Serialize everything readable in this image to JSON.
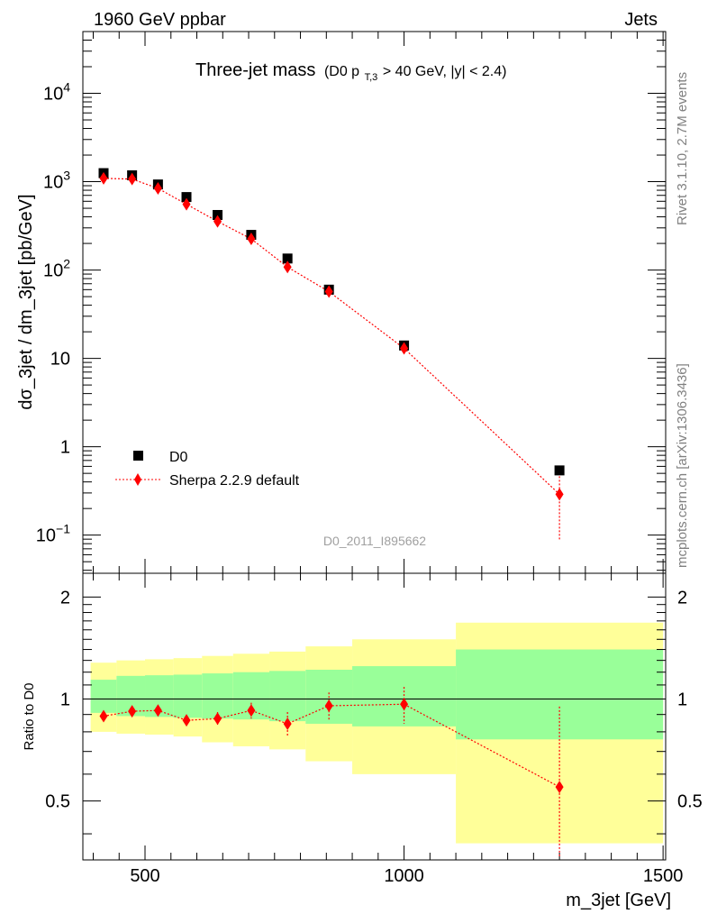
{
  "header": {
    "energy_label": "1960 GeV ppbar",
    "category_label": "Jets"
  },
  "side_labels": {
    "rivet": "Rivet 3.1.10,  2.7M events",
    "source": "mcplots.cern.ch [arXiv:1306.3436]"
  },
  "chart_data": [
    {
      "type": "scatter",
      "title": "Three-jet mass",
      "subtitle_prefix": "(D0 p",
      "subtitle_sub": "T,3",
      "subtitle_suffix": " > 40 GeV, |y| < 2.4)",
      "watermark": "D0_2011_I895662",
      "xlabel": "m_3jet [GeV]",
      "ylabel": "dσ_3jet / dm_3jet [pb/GeV]",
      "xlim": [
        380,
        1505
      ],
      "ylim": [
        0.037,
        50000
      ],
      "yscale": "log",
      "legend_position": "bottom-left",
      "y_ticks": [
        {
          "value": 0.1,
          "base": "10",
          "exp": "−1"
        },
        {
          "value": 1,
          "base": "1",
          "exp": ""
        },
        {
          "value": 10,
          "base": "10",
          "exp": ""
        },
        {
          "value": 100,
          "base": "10",
          "exp": "2"
        },
        {
          "value": 1000,
          "base": "10",
          "exp": "3"
        },
        {
          "value": 10000,
          "base": "10",
          "exp": "4"
        }
      ],
      "series": [
        {
          "name": "D0",
          "color": "#000000",
          "marker": "square",
          "x": [
            420,
            475,
            525,
            580,
            640,
            705,
            775,
            855,
            1000,
            1300
          ],
          "y": [
            1250,
            1180,
            930,
            670,
            420,
            250,
            135,
            60,
            14,
            0.54
          ]
        },
        {
          "name": "Sherpa 2.2.9 default",
          "color": "#ff0000",
          "marker": "diamond",
          "line": "dotted",
          "x": [
            420,
            475,
            525,
            580,
            640,
            705,
            775,
            855,
            1000,
            1300
          ],
          "y": [
            1090,
            1070,
            840,
            555,
            355,
            225,
            108,
            57,
            13,
            0.29
          ],
          "y_err_low": [
            0,
            0,
            0,
            0,
            0,
            0,
            0,
            0,
            0,
            0.086
          ],
          "y_err_high": [
            0,
            0,
            0,
            0,
            0,
            0,
            0,
            0,
            0,
            0.56
          ]
        }
      ]
    },
    {
      "type": "scatter",
      "ylabel": "Ratio to D0",
      "xlim": [
        380,
        1505
      ],
      "ylim": [
        0.335,
        2.35
      ],
      "yscale": "log",
      "x_ticks": [
        500,
        1000,
        1500
      ],
      "y_ticks": [
        0.5,
        1,
        2
      ],
      "reference_line": 1,
      "bands": {
        "bin_edges": [
          395,
          445,
          500,
          555,
          610,
          670,
          740,
          810,
          900,
          1100,
          1500
        ],
        "inner": {
          "color": "#99ff99",
          "low": [
            0.91,
            0.89,
            0.885,
            0.88,
            0.875,
            0.87,
            0.86,
            0.845,
            0.83,
            0.76
          ],
          "high": [
            1.14,
            1.17,
            1.175,
            1.18,
            1.19,
            1.2,
            1.21,
            1.22,
            1.25,
            1.4
          ]
        },
        "outer": {
          "color": "#ffff99",
          "low": [
            0.8,
            0.79,
            0.785,
            0.775,
            0.745,
            0.725,
            0.71,
            0.655,
            0.6,
            0.375
          ],
          "high": [
            1.28,
            1.3,
            1.31,
            1.32,
            1.34,
            1.36,
            1.38,
            1.43,
            1.5,
            1.68
          ]
        }
      },
      "series": [
        {
          "name": "Sherpa 2.2.9 default",
          "color": "#ff0000",
          "marker": "diamond",
          "line": "dotted",
          "x": [
            420,
            475,
            525,
            580,
            640,
            705,
            775,
            855,
            1000,
            1300
          ],
          "y": [
            0.89,
            0.92,
            0.925,
            0.865,
            0.875,
            0.925,
            0.845,
            0.955,
            0.965,
            0.55
          ],
          "y_err_low": [
            0.03,
            0.03,
            0.03,
            0.03,
            0.04,
            0.05,
            0.07,
            0.09,
            0.12,
            0.22
          ],
          "y_err_high": [
            0.03,
            0.03,
            0.03,
            0.03,
            0.04,
            0.05,
            0.07,
            0.09,
            0.12,
            0.4
          ]
        }
      ]
    }
  ]
}
